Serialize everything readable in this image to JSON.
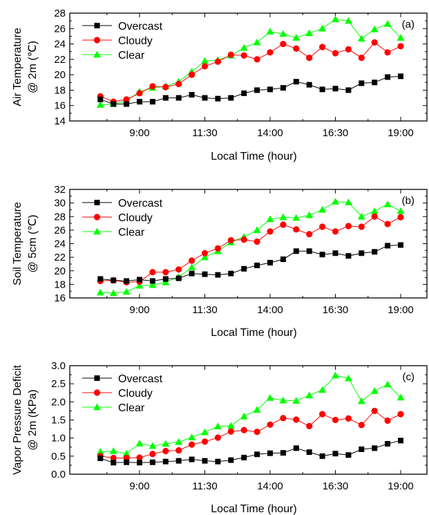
{
  "chart_data": [
    {
      "type": "line",
      "panel_label": "(a)",
      "xlabel": "Local Time (hour)",
      "ylabel": [
        "Air Temperature",
        "@ 2m (℃)"
      ],
      "x_ticks": [
        "9:00",
        "11:30",
        "14:00",
        "16:30",
        "19:00"
      ],
      "ylim": [
        14,
        28
      ],
      "y_ticks": [
        "14",
        "16",
        "18",
        "20",
        "22",
        "24",
        "26",
        "28"
      ],
      "legend_position": "top-left",
      "x": [
        "7:30",
        "8:00",
        "8:30",
        "9:00",
        "9:30",
        "10:00",
        "10:30",
        "11:00",
        "11:30",
        "12:00",
        "12:30",
        "13:00",
        "13:30",
        "14:00",
        "14:30",
        "15:00",
        "15:30",
        "16:00",
        "16:30",
        "17:00",
        "17:30",
        "18:00",
        "18:30",
        "19:00"
      ],
      "series": [
        {
          "name": "Overcast",
          "color": "#000000",
          "marker": "square",
          "values": [
            16.8,
            16.2,
            16.2,
            16.5,
            16.5,
            17.0,
            17.0,
            17.4,
            17.0,
            16.9,
            17.0,
            17.6,
            18.0,
            18.1,
            18.3,
            19.1,
            18.7,
            18.1,
            18.2,
            18.0,
            18.9,
            19.0,
            19.7,
            19.8
          ]
        },
        {
          "name": "Cloudy",
          "color": "#ff0000",
          "marker": "circle",
          "values": [
            17.2,
            16.5,
            16.8,
            17.6,
            18.5,
            18.4,
            18.8,
            20.0,
            21.1,
            21.7,
            22.6,
            22.5,
            22.0,
            22.9,
            24.0,
            23.4,
            22.2,
            23.6,
            22.8,
            23.3,
            22.2,
            24.2,
            22.9,
            23.7
          ]
        },
        {
          "name": "Clear",
          "color": "#00ff00",
          "marker": "triangle",
          "values": [
            16.1,
            16.2,
            16.6,
            17.8,
            18.3,
            18.5,
            19.1,
            20.4,
            21.8,
            21.9,
            22.5,
            23.5,
            24.2,
            25.6,
            25.3,
            24.8,
            25.4,
            26.0,
            27.2,
            27.0,
            24.7,
            25.9,
            26.6,
            24.8
          ]
        }
      ]
    },
    {
      "type": "line",
      "panel_label": "(b)",
      "xlabel": "Local Time (hour)",
      "ylabel": [
        "Soil Temperature",
        "@ 5cm (℃)"
      ],
      "x_ticks": [
        "9:00",
        "11:30",
        "14:00",
        "16:30",
        "19:00"
      ],
      "ylim": [
        16,
        32
      ],
      "y_ticks": [
        "16",
        "18",
        "20",
        "22",
        "24",
        "26",
        "28",
        "30",
        "32"
      ],
      "legend_position": "top-left",
      "x": [
        "7:30",
        "8:00",
        "8:30",
        "9:00",
        "9:30",
        "10:00",
        "10:30",
        "11:00",
        "11:30",
        "12:00",
        "12:30",
        "13:00",
        "13:30",
        "14:00",
        "14:30",
        "15:00",
        "15:30",
        "16:00",
        "16:30",
        "17:00",
        "17:30",
        "18:00",
        "18:30",
        "19:00"
      ],
      "series": [
        {
          "name": "Overcast",
          "color": "#000000",
          "marker": "square",
          "values": [
            18.8,
            18.6,
            18.5,
            18.7,
            18.5,
            18.8,
            18.9,
            19.6,
            19.5,
            19.4,
            19.6,
            20.3,
            20.8,
            21.2,
            21.7,
            22.9,
            22.9,
            22.4,
            22.6,
            22.2,
            22.6,
            22.8,
            23.7,
            23.8
          ]
        },
        {
          "name": "Cloudy",
          "color": "#ff0000",
          "marker": "circle",
          "values": [
            18.5,
            18.6,
            18.3,
            18.4,
            19.8,
            19.8,
            20.2,
            21.5,
            22.6,
            23.3,
            24.5,
            24.6,
            24.3,
            25.8,
            26.8,
            26.1,
            25.4,
            26.5,
            25.8,
            26.6,
            26.5,
            28.0,
            26.9,
            27.9
          ]
        },
        {
          "name": "Clear",
          "color": "#00ff00",
          "marker": "triangle",
          "values": [
            16.8,
            16.7,
            16.9,
            17.8,
            17.9,
            18.3,
            19.1,
            20.5,
            22.0,
            22.9,
            24.2,
            25.0,
            26.0,
            27.6,
            27.9,
            27.8,
            28.2,
            29.0,
            30.2,
            30.1,
            28.0,
            28.8,
            29.8,
            28.8
          ]
        }
      ]
    },
    {
      "type": "line",
      "panel_label": "(c)",
      "xlabel": "Local Time (hour)",
      "ylabel": [
        "Vapor Pressure Deficit",
        "@ 2m (KPa)"
      ],
      "x_ticks": [
        "9:00",
        "11:30",
        "14:00",
        "16:30",
        "19:00"
      ],
      "ylim": [
        0.0,
        3.0
      ],
      "y_ticks": [
        "0.0",
        "0.5",
        "1.0",
        "1.5",
        "2.0",
        "2.5",
        "3.0"
      ],
      "legend_position": "top-left",
      "x": [
        "7:30",
        "8:00",
        "8:30",
        "9:00",
        "9:30",
        "10:00",
        "10:30",
        "11:00",
        "11:30",
        "12:00",
        "12:30",
        "13:00",
        "13:30",
        "14:00",
        "14:30",
        "15:00",
        "15:30",
        "16:00",
        "16:30",
        "17:00",
        "17:30",
        "18:00",
        "18:30",
        "19:00"
      ],
      "series": [
        {
          "name": "Overcast",
          "color": "#000000",
          "marker": "square",
          "values": [
            0.44,
            0.32,
            0.33,
            0.32,
            0.33,
            0.35,
            0.37,
            0.41,
            0.37,
            0.35,
            0.39,
            0.46,
            0.55,
            0.58,
            0.59,
            0.72,
            0.61,
            0.5,
            0.57,
            0.53,
            0.69,
            0.72,
            0.84,
            0.93
          ]
        },
        {
          "name": "Cloudy",
          "color": "#ff0000",
          "marker": "circle",
          "values": [
            0.5,
            0.45,
            0.45,
            0.46,
            0.56,
            0.64,
            0.66,
            0.82,
            0.9,
            1.01,
            1.18,
            1.22,
            1.17,
            1.37,
            1.55,
            1.51,
            1.33,
            1.66,
            1.5,
            1.54,
            1.36,
            1.75,
            1.48,
            1.66
          ]
        },
        {
          "name": "Clear",
          "color": "#00ff00",
          "marker": "triangle",
          "values": [
            0.62,
            0.64,
            0.57,
            0.85,
            0.78,
            0.84,
            0.89,
            1.02,
            1.16,
            1.32,
            1.34,
            1.6,
            1.78,
            2.11,
            2.04,
            2.03,
            2.18,
            2.33,
            2.73,
            2.65,
            2.02,
            2.3,
            2.48,
            2.12
          ]
        }
      ]
    }
  ]
}
